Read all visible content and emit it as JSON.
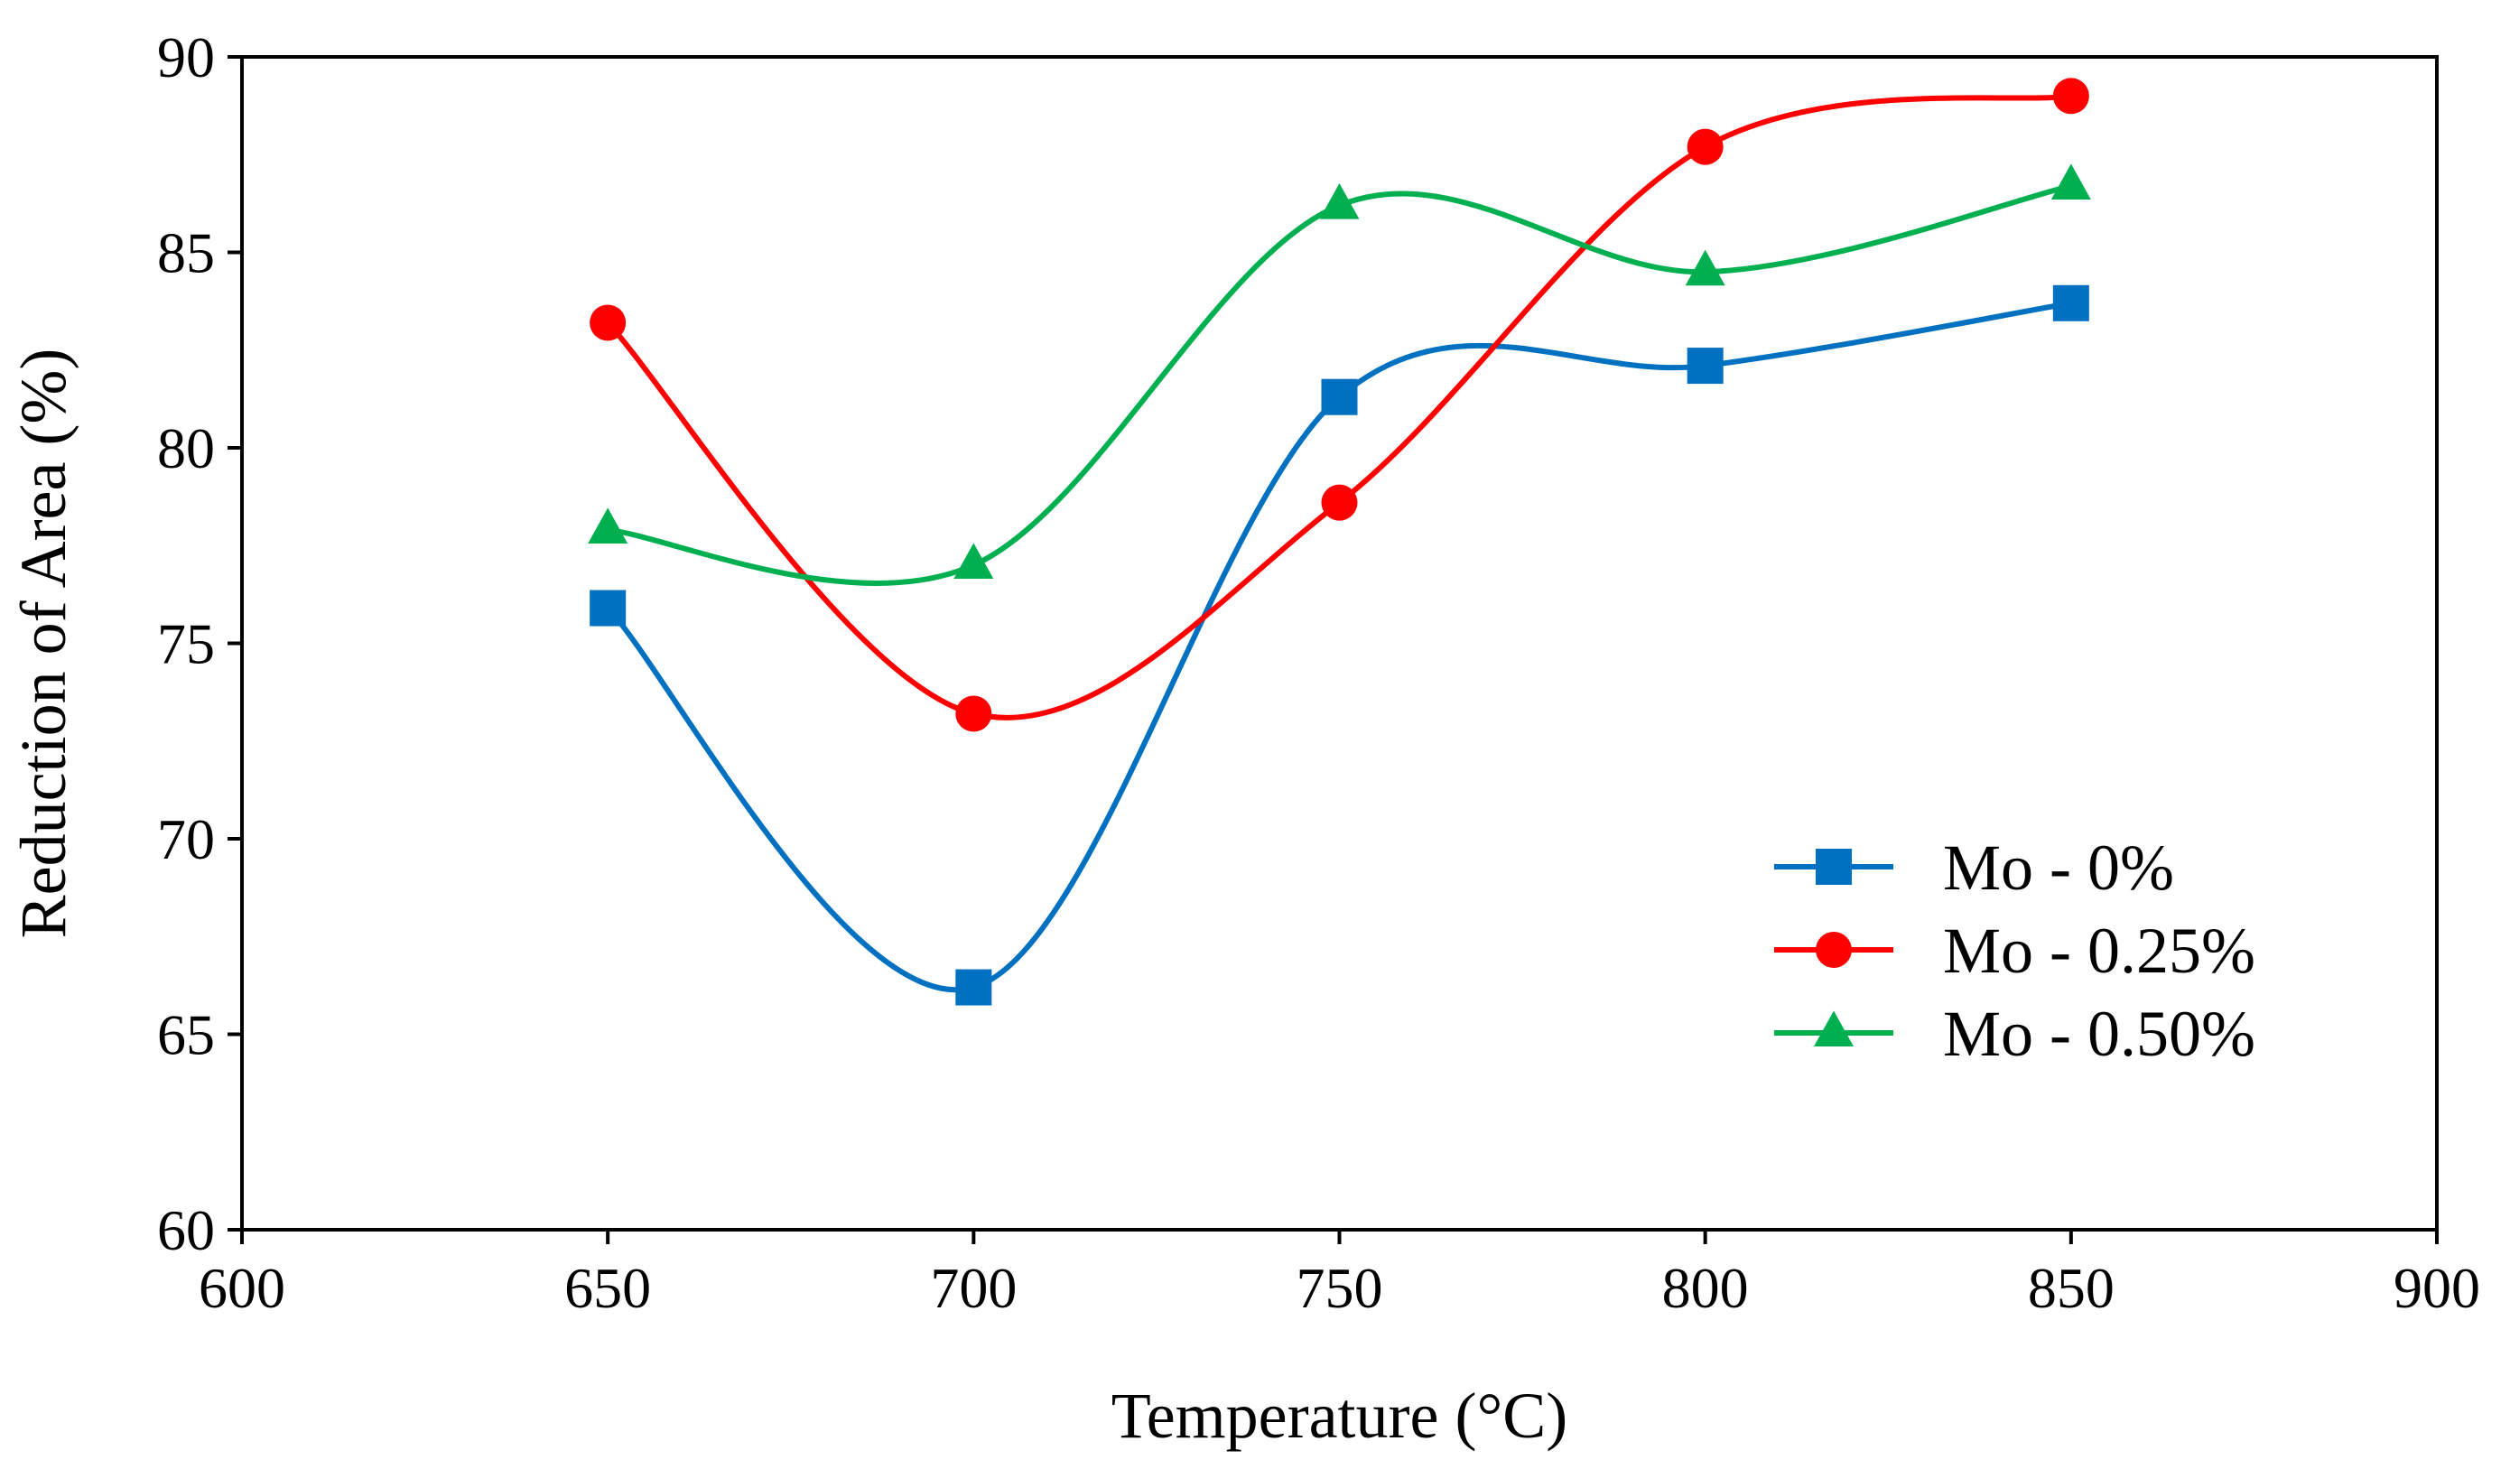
{
  "chart_data": {
    "type": "line",
    "title": "",
    "xlabel": "Temperature (°C)",
    "ylabel": "Reduction of Area (%)",
    "xlim": [
      600,
      900
    ],
    "ylim": [
      60,
      90
    ],
    "xticks": [
      600,
      650,
      700,
      750,
      800,
      850,
      900
    ],
    "yticks": [
      60,
      65,
      70,
      75,
      80,
      85,
      90
    ],
    "grid": false,
    "legend_position": "bottom-right",
    "smooth": true,
    "series": [
      {
        "name": "Mo - 0%",
        "color": "#0070C0",
        "marker": "square",
        "x": [
          650,
          700,
          750,
          800,
          850
        ],
        "y": [
          75.9,
          66.2,
          81.3,
          82.1,
          83.7
        ]
      },
      {
        "name": "Mo - 0.25%",
        "color": "#FF0000",
        "marker": "circle",
        "x": [
          650,
          700,
          750,
          800,
          850
        ],
        "y": [
          83.2,
          73.2,
          78.6,
          87.7,
          89.0
        ]
      },
      {
        "name": "Mo - 0.50%",
        "color": "#00B050",
        "marker": "triangle",
        "x": [
          650,
          700,
          750,
          800,
          850
        ],
        "y": [
          77.9,
          77.0,
          86.2,
          84.5,
          86.7
        ]
      }
    ]
  }
}
